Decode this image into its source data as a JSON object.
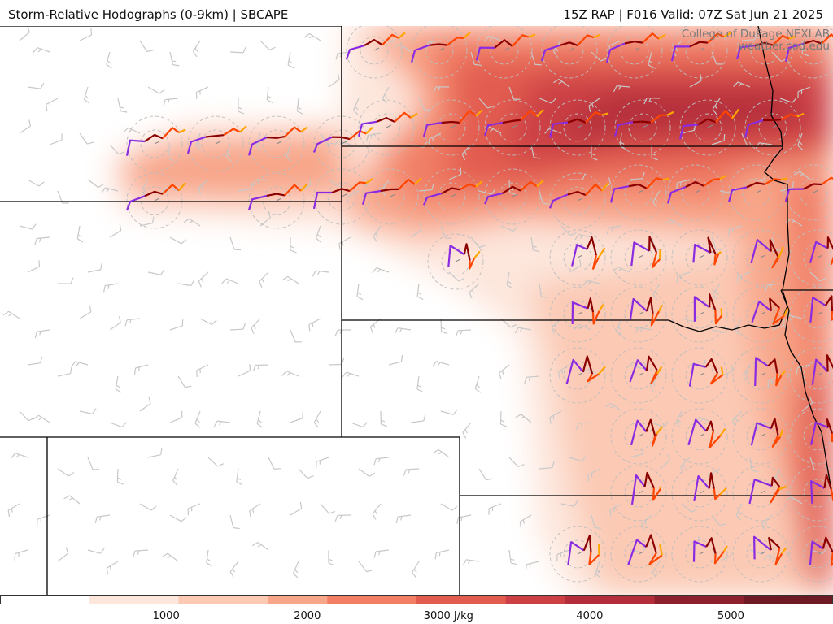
{
  "header": {
    "title_left": "Storm-Relative Hodographs (0-9km) | SBCAPE",
    "title_right": "15Z RAP | F016 Valid: 07Z Sat Jun 21 2025"
  },
  "credits": {
    "line1": "College of DuPage NEXLAB",
    "line2": "weather.cod.edu"
  },
  "colorbar": {
    "units": "J/kg",
    "ticks": [
      {
        "value": 1000,
        "label": "1000"
      },
      {
        "value": 2000,
        "label": "2000"
      },
      {
        "value": 3000,
        "label": "3000 J/kg"
      },
      {
        "value": 4000,
        "label": "4000"
      },
      {
        "value": 5000,
        "label": "5000"
      }
    ],
    "min": 100,
    "max": 6000,
    "colors": [
      "#ffffff",
      "#fde6dc",
      "#fbc9b4",
      "#f8a689",
      "#f17f66",
      "#e25c4f",
      "#cc3f45",
      "#b32d3a",
      "#8e1f2c",
      "#6e1a24"
    ]
  },
  "hodograph_colors": {
    "layer_0_1km": "#8a2be2",
    "layer_1_3km": "#8b0000",
    "layer_3_6km": "#ff4500",
    "layer_6_9km": "#ffa500"
  },
  "boundary_color": "#000000",
  "barb_color": "#c8c8c8"
}
